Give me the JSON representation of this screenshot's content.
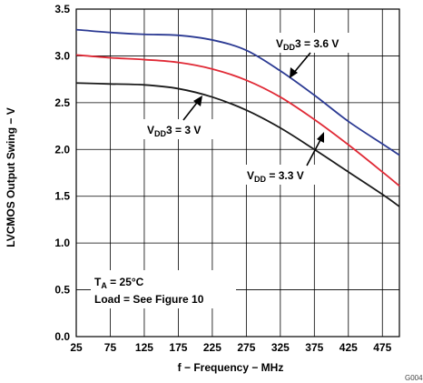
{
  "chart_data": {
    "type": "line",
    "xlabel": "f − Frequency − MHz",
    "ylabel": "LVCMOS Output Swing − V",
    "xlim": [
      25,
      500
    ],
    "ylim": [
      0.0,
      3.5
    ],
    "x_ticks": [
      25,
      75,
      125,
      175,
      225,
      275,
      325,
      375,
      425,
      475
    ],
    "x_tick_labels": [
      "25",
      "75",
      "125",
      "175",
      "225",
      "275",
      "325",
      "375",
      "425",
      "475"
    ],
    "y_ticks": [
      0.0,
      0.5,
      1.0,
      1.5,
      2.0,
      2.5,
      3.0,
      3.5
    ],
    "y_tick_labels": [
      "0.0",
      "0.5",
      "1.0",
      "1.5",
      "2.0",
      "2.5",
      "3.0",
      "3.5"
    ],
    "grid": true,
    "series": [
      {
        "name": "VDD3 = 3.6 V",
        "color": "#2b3a93",
        "x": [
          25,
          75,
          125,
          175,
          225,
          275,
          325,
          375,
          425,
          475,
          500
        ],
        "y": [
          3.28,
          3.25,
          3.23,
          3.22,
          3.17,
          3.06,
          2.84,
          2.58,
          2.3,
          2.06,
          1.94
        ]
      },
      {
        "name": "VDD = 3.3 V",
        "color": "#e02a36",
        "x": [
          25,
          75,
          125,
          175,
          225,
          275,
          325,
          375,
          425,
          475,
          500
        ],
        "y": [
          3.01,
          2.98,
          2.96,
          2.93,
          2.86,
          2.74,
          2.56,
          2.32,
          2.05,
          1.76,
          1.61
        ]
      },
      {
        "name": "VDD3 = 3 V",
        "color": "#1a1a1a",
        "x": [
          25,
          75,
          125,
          175,
          225,
          275,
          325,
          375,
          425,
          475,
          500
        ],
        "y": [
          2.71,
          2.7,
          2.69,
          2.65,
          2.56,
          2.42,
          2.23,
          2.0,
          1.76,
          1.52,
          1.39
        ]
      }
    ],
    "annotations": {
      "label_36": {
        "main": "V",
        "sub": "DD",
        "rest": "3 = 3.6 V"
      },
      "label_3": {
        "main": "V",
        "sub": "DD",
        "rest": "3 = 3 V"
      },
      "label_33": {
        "main": "V",
        "sub": "DD",
        "rest": " = 3.3 V"
      },
      "conditions": {
        "line1_main": "T",
        "line1_sub": "A",
        "line1_rest": " = 25°C",
        "line2": "Load = See Figure 10"
      }
    },
    "figure_id": "G004"
  }
}
